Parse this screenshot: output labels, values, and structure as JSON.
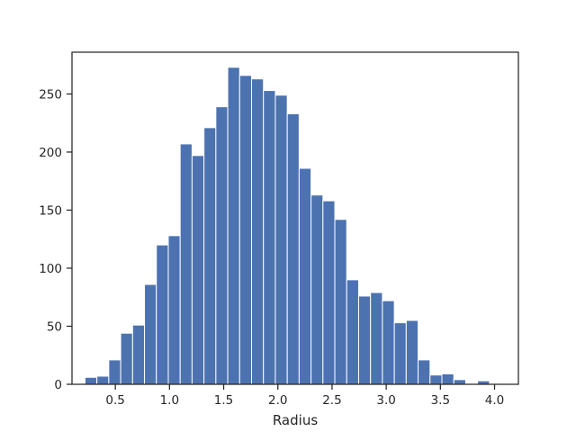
{
  "chart_data": {
    "type": "bar",
    "subtype": "histogram",
    "title": "",
    "xlabel": "Radius",
    "ylabel": "",
    "xlim": [
      0.1,
      4.22
    ],
    "ylim": [
      0,
      286
    ],
    "xticks": [
      0.5,
      1.0,
      1.5,
      2.0,
      2.5,
      3.0,
      3.5,
      4.0
    ],
    "xtick_labels": [
      "0.5",
      "1.0",
      "1.5",
      "2.0",
      "2.5",
      "3.0",
      "3.5",
      "4.0"
    ],
    "yticks": [
      0,
      50,
      100,
      150,
      200,
      250
    ],
    "ytick_labels": [
      "0",
      "50",
      "100",
      "150",
      "200",
      "250"
    ],
    "grid": false,
    "legend": "none",
    "bin_start": 0.22,
    "bin_width": 0.1098,
    "values": [
      6,
      7,
      21,
      44,
      51,
      86,
      120,
      128,
      207,
      197,
      221,
      239,
      273,
      266,
      263,
      253,
      249,
      233,
      186,
      163,
      158,
      142,
      90,
      76,
      79,
      72,
      53,
      55,
      21,
      8,
      9,
      4,
      0,
      3
    ],
    "colors": {
      "bar": "#4c72b0",
      "bar_edge": "#ffffff",
      "axis": "#262626"
    }
  }
}
